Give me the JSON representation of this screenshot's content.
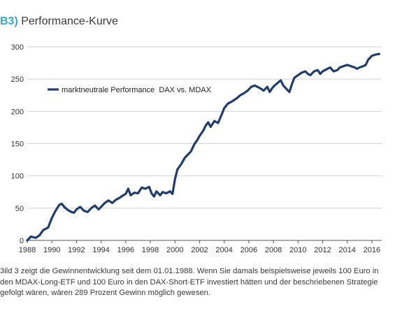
{
  "heading": {
    "number": "B3)",
    "title": "Performance-Kurve"
  },
  "colors": {
    "line": "#1f3d6e",
    "grid": "#d2d2d2",
    "heading_accent": "#3aa6c8"
  },
  "chart_data": {
    "type": "line",
    "title": "",
    "xlabel": "",
    "ylabel": "",
    "xlim": [
      1988,
      2016.8
    ],
    "ylim": [
      0,
      300
    ],
    "x_ticks": [
      "1988",
      "1990",
      "1992",
      "1994",
      "1996",
      "1998",
      "2000",
      "2002",
      "2004",
      "2006",
      "2008",
      "2010",
      "2012",
      "2014",
      "2016"
    ],
    "y_ticks": [
      "0",
      "50",
      "100",
      "150",
      "200",
      "250",
      "300"
    ],
    "grid": "horizontal",
    "legend": "top-left",
    "series": [
      {
        "name": "marktneutrale Performance  DAX vs. MDAX",
        "points": [
          [
            1988.0,
            0
          ],
          [
            1988.3,
            6
          ],
          [
            1988.7,
            4
          ],
          [
            1989.0,
            8
          ],
          [
            1989.3,
            16
          ],
          [
            1989.7,
            20
          ],
          [
            1990.0,
            35
          ],
          [
            1990.3,
            46
          ],
          [
            1990.6,
            55
          ],
          [
            1990.8,
            57
          ],
          [
            1991.0,
            52
          ],
          [
            1991.3,
            47
          ],
          [
            1991.6,
            44
          ],
          [
            1991.8,
            43
          ],
          [
            1992.0,
            48
          ],
          [
            1992.3,
            52
          ],
          [
            1992.6,
            46
          ],
          [
            1992.9,
            44
          ],
          [
            1993.2,
            50
          ],
          [
            1993.5,
            54
          ],
          [
            1993.8,
            48
          ],
          [
            1994.0,
            52
          ],
          [
            1994.3,
            58
          ],
          [
            1994.6,
            62
          ],
          [
            1994.9,
            58
          ],
          [
            1995.2,
            63
          ],
          [
            1995.5,
            66
          ],
          [
            1995.8,
            70
          ],
          [
            1996.0,
            72
          ],
          [
            1996.2,
            80
          ],
          [
            1996.4,
            70
          ],
          [
            1996.7,
            74
          ],
          [
            1997.0,
            73
          ],
          [
            1997.3,
            82
          ],
          [
            1997.6,
            80
          ],
          [
            1997.9,
            83
          ],
          [
            1998.1,
            73
          ],
          [
            1998.3,
            68
          ],
          [
            1998.5,
            76
          ],
          [
            1998.8,
            70
          ],
          [
            1999.0,
            75
          ],
          [
            1999.3,
            73
          ],
          [
            1999.6,
            76
          ],
          [
            1999.8,
            72
          ],
          [
            2000.0,
            95
          ],
          [
            2000.2,
            110
          ],
          [
            2000.5,
            118
          ],
          [
            2000.8,
            128
          ],
          [
            2001.0,
            132
          ],
          [
            2001.3,
            138
          ],
          [
            2001.6,
            150
          ],
          [
            2001.8,
            155
          ],
          [
            2002.0,
            162
          ],
          [
            2002.3,
            170
          ],
          [
            2002.5,
            178
          ],
          [
            2002.7,
            183
          ],
          [
            2002.9,
            176
          ],
          [
            2003.2,
            185
          ],
          [
            2003.5,
            182
          ],
          [
            2003.8,
            195
          ],
          [
            2004.0,
            205
          ],
          [
            2004.3,
            212
          ],
          [
            2004.6,
            215
          ],
          [
            2005.0,
            220
          ],
          [
            2005.3,
            225
          ],
          [
            2005.6,
            228
          ],
          [
            2005.9,
            232
          ],
          [
            2006.2,
            238
          ],
          [
            2006.5,
            240
          ],
          [
            2006.8,
            237
          ],
          [
            2007.0,
            235
          ],
          [
            2007.2,
            232
          ],
          [
            2007.5,
            238
          ],
          [
            2007.7,
            230
          ],
          [
            2007.9,
            236
          ],
          [
            2008.1,
            240
          ],
          [
            2008.4,
            245
          ],
          [
            2008.6,
            248
          ],
          [
            2008.8,
            240
          ],
          [
            2009.0,
            236
          ],
          [
            2009.3,
            230
          ],
          [
            2009.5,
            242
          ],
          [
            2009.7,
            252
          ],
          [
            2010.0,
            256
          ],
          [
            2010.3,
            260
          ],
          [
            2010.6,
            262
          ],
          [
            2010.8,
            258
          ],
          [
            2011.0,
            256
          ],
          [
            2011.3,
            262
          ],
          [
            2011.6,
            264
          ],
          [
            2011.8,
            258
          ],
          [
            2012.0,
            262
          ],
          [
            2012.3,
            265
          ],
          [
            2012.6,
            268
          ],
          [
            2012.9,
            262
          ],
          [
            2013.2,
            264
          ],
          [
            2013.4,
            268
          ],
          [
            2013.7,
            270
          ],
          [
            2014.0,
            272
          ],
          [
            2014.3,
            270
          ],
          [
            2014.6,
            268
          ],
          [
            2014.8,
            266
          ],
          [
            2015.0,
            268
          ],
          [
            2015.3,
            270
          ],
          [
            2015.5,
            272
          ],
          [
            2015.7,
            280
          ],
          [
            2016.0,
            286
          ],
          [
            2016.3,
            288
          ],
          [
            2016.6,
            289
          ]
        ]
      }
    ]
  },
  "caption": {
    "line1": "3ild 3 zeigt die Gewinnentwicklung seit dem 01.01.1988. Wenn Sie damals beispielsweise jeweils 100 Euro in",
    "line2": "den MDAX-Long-ETF und 100 Euro in den DAX-Short-ETF investiert hätten und der beschriebenen Strategie",
    "line3": "gefolgt wären, wären 289 Prozent Gewinn möglich gewesen."
  }
}
